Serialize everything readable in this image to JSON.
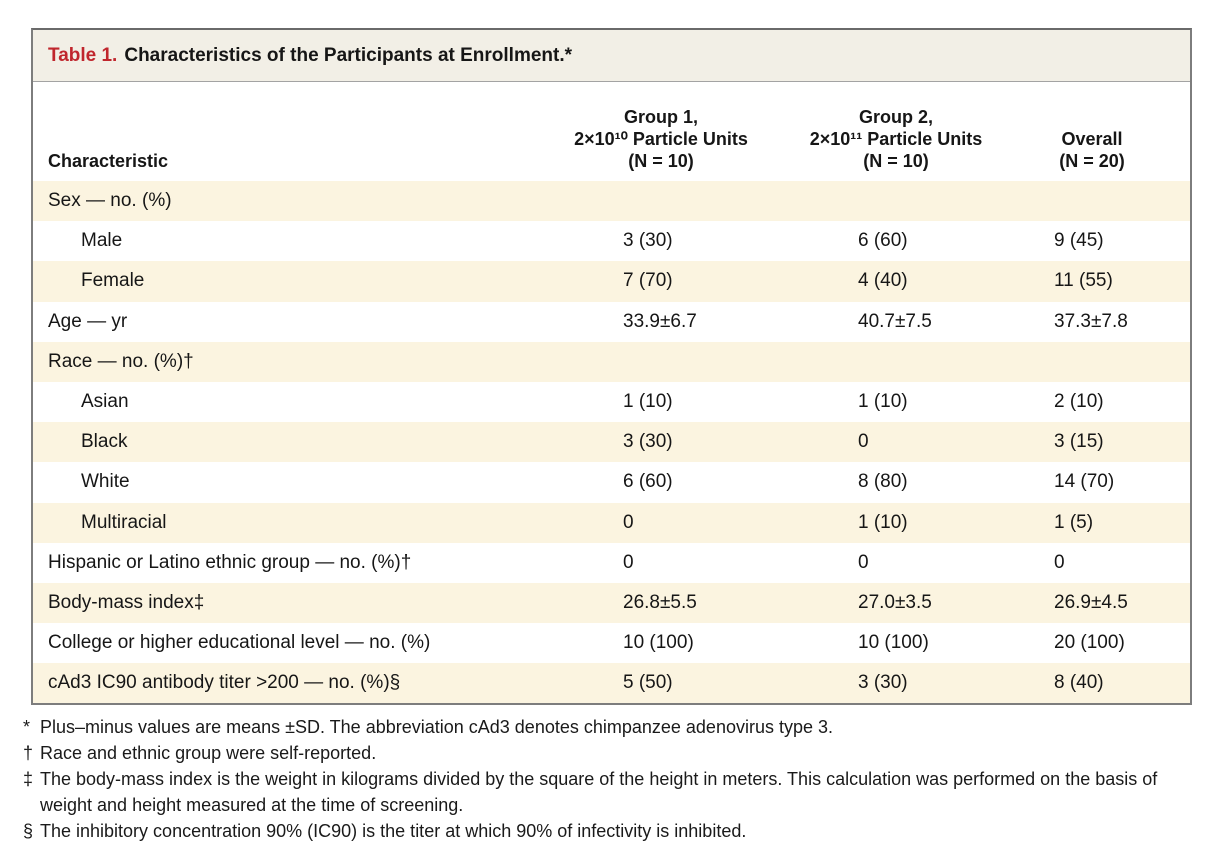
{
  "table": {
    "number_label": "Table 1.",
    "title": "Characteristics of the Participants at Enrollment.*",
    "columns": [
      {
        "header": "Characteristic"
      },
      {
        "header": "Group 1,\n2×10¹⁰ Particle Units\n(N = 10)"
      },
      {
        "header": "Group 2,\n2×10¹¹ Particle Units\n(N = 10)"
      },
      {
        "header": "Overall\n(N = 20)"
      }
    ],
    "rows": [
      {
        "label": "Sex — no. (%)",
        "indent": false,
        "values": [
          "",
          "",
          ""
        ]
      },
      {
        "label": "Male",
        "indent": true,
        "values": [
          "3 (30)",
          "6 (60)",
          "9 (45)"
        ]
      },
      {
        "label": "Female",
        "indent": true,
        "values": [
          "7 (70)",
          "4 (40)",
          "11 (55)"
        ]
      },
      {
        "label": "Age — yr",
        "indent": false,
        "values": [
          "33.9±6.7",
          "40.7±7.5",
          "37.3±7.8"
        ]
      },
      {
        "label": "Race — no. (%)†",
        "indent": false,
        "values": [
          "",
          "",
          ""
        ]
      },
      {
        "label": "Asian",
        "indent": true,
        "values": [
          "1 (10)",
          "1 (10)",
          "2 (10)"
        ]
      },
      {
        "label": "Black",
        "indent": true,
        "values": [
          "3 (30)",
          "0",
          "3 (15)"
        ]
      },
      {
        "label": "White",
        "indent": true,
        "values": [
          "6 (60)",
          "8 (80)",
          "14 (70)"
        ]
      },
      {
        "label": "Multiracial",
        "indent": true,
        "values": [
          "0",
          "1 (10)",
          "1 (5)"
        ]
      },
      {
        "label": "Hispanic or Latino ethnic group — no. (%)†",
        "indent": false,
        "values": [
          "0",
          "0",
          "0"
        ]
      },
      {
        "label": "Body-mass index‡",
        "indent": false,
        "values": [
          "26.8±5.5",
          "27.0±3.5",
          "26.9±4.5"
        ]
      },
      {
        "label": "College or higher educational level — no. (%)",
        "indent": false,
        "values": [
          "10 (100)",
          "10 (100)",
          "20 (100)"
        ]
      },
      {
        "label": "cAd3 IC90 antibody titer >200 — no. (%)§",
        "indent": false,
        "values": [
          "5 (50)",
          "3 (30)",
          "8 (40)"
        ]
      }
    ]
  },
  "footnotes": [
    {
      "marker": "*",
      "text": "Plus–minus values are means ±SD. The abbreviation cAd3 denotes chimpanzee adenovirus type 3."
    },
    {
      "marker": "†",
      "text": "Race and ethnic group were self-reported."
    },
    {
      "marker": "‡",
      "text": "The body-mass index is the weight in kilograms divided by the square of the height in meters. This calculation was performed on the basis of weight and height measured at the time of screening."
    },
    {
      "marker": "§",
      "text": "The inhibitory concentration 90% (IC90) is the titer at which 90% of infectivity is inhibited."
    }
  ],
  "colors": {
    "accent_red": "#c0262d",
    "row_shade": "#fbf4e0",
    "title_bar_bg": "#f2efe6",
    "border_gray": "#7d7d7d"
  }
}
